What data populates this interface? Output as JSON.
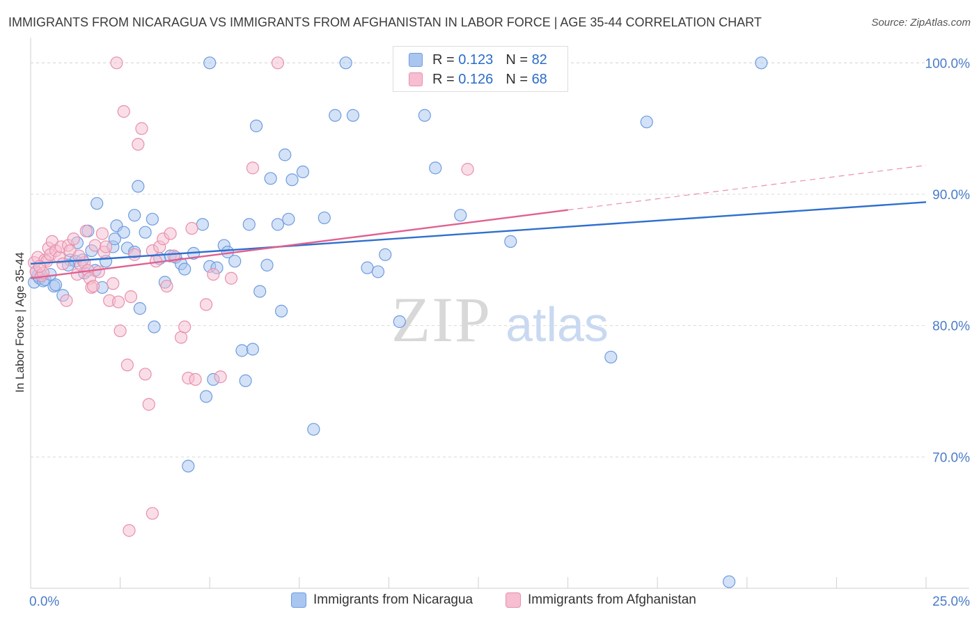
{
  "title": "IMMIGRANTS FROM NICARAGUA VS IMMIGRANTS FROM AFGHANISTAN IN LABOR FORCE | AGE 35-44 CORRELATION CHART",
  "source": "Source: ZipAtlas.com",
  "watermark": {
    "zip": "ZIP",
    "atlas": "atlas"
  },
  "legend_top": [
    {
      "r_label": "R =",
      "r_value": "0.123",
      "n_label": "N =",
      "n_value": "82"
    },
    {
      "r_label": "R =",
      "r_value": "0.126",
      "n_label": "N =",
      "n_value": "68"
    }
  ],
  "colors": {
    "blue_fill": "#a9c6f0",
    "blue_stroke": "#6d9be0",
    "blue_line": "#2f6fce",
    "pink_fill": "#f6bed0",
    "pink_stroke": "#e88fab",
    "pink_line": "#e06090",
    "tick_label": "#4a7cc7",
    "grid": "#d9d9d9"
  },
  "chart_data": {
    "type": "scatter",
    "title": "IMMIGRANTS FROM NICARAGUA VS IMMIGRANTS FROM AFGHANISTAN IN LABOR FORCE | AGE 35-44 CORRELATION CHART",
    "xlabel": "",
    "ylabel": "In Labor Force | Age 35-44",
    "xlim": [
      0,
      25
    ],
    "ylim": [
      60,
      101.5
    ],
    "x_tick_labels": [
      "0.0%",
      "25.0%"
    ],
    "y_ticks": [
      70,
      80,
      90,
      100
    ],
    "y_tick_labels": [
      "70.0%",
      "80.0%",
      "90.0%",
      "100.0%"
    ],
    "grid": true,
    "legend_position": "top-center",
    "series": [
      {
        "name": "Immigrants from Nicaragua",
        "r": 0.123,
        "n": 82,
        "trend": {
          "x0": 0,
          "y0": 84.7,
          "x1": 25,
          "y1": 89.4
        },
        "points": [
          [
            0.1,
            83.3
          ],
          [
            0.2,
            83.8
          ],
          [
            0.25,
            83.6
          ],
          [
            0.35,
            83.4
          ],
          [
            0.4,
            83.5
          ],
          [
            0.55,
            83.9
          ],
          [
            0.65,
            83.0
          ],
          [
            0.7,
            83.1
          ],
          [
            0.9,
            82.3
          ],
          [
            1.1,
            85.0
          ],
          [
            1.25,
            84.9
          ],
          [
            1.3,
            86.3
          ],
          [
            1.5,
            84.0
          ],
          [
            1.6,
            87.2
          ],
          [
            1.7,
            85.7
          ],
          [
            1.8,
            84.2
          ],
          [
            1.85,
            89.3
          ],
          [
            2.0,
            82.9
          ],
          [
            2.1,
            84.9
          ],
          [
            2.3,
            86.0
          ],
          [
            2.4,
            87.6
          ],
          [
            2.6,
            87.1
          ],
          [
            2.7,
            85.9
          ],
          [
            2.9,
            85.6
          ],
          [
            2.9,
            88.4
          ],
          [
            3.0,
            90.6
          ],
          [
            3.05,
            81.3
          ],
          [
            3.2,
            87.1
          ],
          [
            3.4,
            88.1
          ],
          [
            3.45,
            79.9
          ],
          [
            3.6,
            85.1
          ],
          [
            3.75,
            83.3
          ],
          [
            3.9,
            85.3
          ],
          [
            4.05,
            85.2
          ],
          [
            4.2,
            84.7
          ],
          [
            4.3,
            84.3
          ],
          [
            4.4,
            69.3
          ],
          [
            4.55,
            85.5
          ],
          [
            4.8,
            87.7
          ],
          [
            4.9,
            74.6
          ],
          [
            5.0,
            84.5
          ],
          [
            5.1,
            75.9
          ],
          [
            5.2,
            84.4
          ],
          [
            5.4,
            86.1
          ],
          [
            5.5,
            85.6
          ],
          [
            5.7,
            84.9
          ],
          [
            5.9,
            78.1
          ],
          [
            6.0,
            75.8
          ],
          [
            6.1,
            87.7
          ],
          [
            6.2,
            78.2
          ],
          [
            6.3,
            95.2
          ],
          [
            6.4,
            82.6
          ],
          [
            6.6,
            84.6
          ],
          [
            6.7,
            91.2
          ],
          [
            6.9,
            87.7
          ],
          [
            7.0,
            81.1
          ],
          [
            7.1,
            93.0
          ],
          [
            7.2,
            88.1
          ],
          [
            7.3,
            91.1
          ],
          [
            7.6,
            91.7
          ],
          [
            7.9,
            72.1
          ],
          [
            8.2,
            88.2
          ],
          [
            8.5,
            96.0
          ],
          [
            9.0,
            96.0
          ],
          [
            9.4,
            84.4
          ],
          [
            9.7,
            84.1
          ],
          [
            9.9,
            85.4
          ],
          [
            10.3,
            80.3
          ],
          [
            11.0,
            96.0
          ],
          [
            11.3,
            92.0
          ],
          [
            12.0,
            88.4
          ],
          [
            5.0,
            100.0
          ],
          [
            8.8,
            100.0
          ],
          [
            13.4,
            86.4
          ],
          [
            16.2,
            77.6
          ],
          [
            17.2,
            95.5
          ],
          [
            20.4,
            100.0
          ],
          [
            19.5,
            60.5
          ],
          [
            2.35,
            86.6
          ],
          [
            1.05,
            84.6
          ],
          [
            0.15,
            84.1
          ],
          [
            1.45,
            85.0
          ]
        ]
      },
      {
        "name": "Immigrants from Afghanistan",
        "r": 0.126,
        "n": 68,
        "trend": {
          "x0": 0,
          "y0": 83.6,
          "x1": 15,
          "y1": 88.8
        },
        "trend_dashed": {
          "x0": 15,
          "y0": 88.8,
          "x1": 25,
          "y1": 92.2
        },
        "points": [
          [
            0.1,
            84.8
          ],
          [
            0.15,
            84.1
          ],
          [
            0.2,
            85.2
          ],
          [
            0.3,
            83.8
          ],
          [
            0.35,
            84.0
          ],
          [
            0.4,
            85.0
          ],
          [
            0.45,
            84.9
          ],
          [
            0.5,
            85.9
          ],
          [
            0.55,
            85.4
          ],
          [
            0.6,
            86.4
          ],
          [
            0.7,
            85.7
          ],
          [
            0.8,
            85.2
          ],
          [
            0.85,
            86.0
          ],
          [
            0.9,
            84.7
          ],
          [
            1.0,
            81.9
          ],
          [
            1.05,
            86.1
          ],
          [
            1.1,
            85.7
          ],
          [
            1.2,
            86.6
          ],
          [
            1.3,
            83.9
          ],
          [
            1.4,
            84.6
          ],
          [
            1.5,
            84.8
          ],
          [
            1.55,
            87.2
          ],
          [
            1.6,
            84.2
          ],
          [
            1.65,
            83.6
          ],
          [
            1.7,
            82.9
          ],
          [
            1.75,
            83.0
          ],
          [
            1.8,
            86.1
          ],
          [
            1.9,
            84.1
          ],
          [
            2.0,
            87.0
          ],
          [
            2.05,
            85.6
          ],
          [
            2.1,
            86.0
          ],
          [
            2.2,
            81.9
          ],
          [
            2.3,
            83.2
          ],
          [
            2.45,
            81.8
          ],
          [
            2.5,
            79.6
          ],
          [
            2.6,
            96.3
          ],
          [
            2.7,
            77.0
          ],
          [
            2.8,
            82.2
          ],
          [
            2.9,
            85.4
          ],
          [
            3.0,
            93.8
          ],
          [
            3.1,
            95.0
          ],
          [
            3.2,
            76.3
          ],
          [
            3.3,
            74.0
          ],
          [
            3.4,
            85.7
          ],
          [
            3.5,
            84.9
          ],
          [
            3.6,
            86.0
          ],
          [
            3.7,
            86.6
          ],
          [
            3.8,
            83.0
          ],
          [
            3.9,
            87.0
          ],
          [
            4.0,
            85.3
          ],
          [
            4.2,
            79.1
          ],
          [
            4.3,
            79.9
          ],
          [
            4.4,
            76.0
          ],
          [
            4.5,
            87.4
          ],
          [
            4.6,
            75.9
          ],
          [
            4.9,
            81.6
          ],
          [
            5.1,
            83.9
          ],
          [
            5.3,
            76.1
          ],
          [
            5.6,
            83.6
          ],
          [
            6.2,
            92.0
          ],
          [
            2.4,
            100.0
          ],
          [
            6.9,
            100.0
          ],
          [
            10.6,
            100.0
          ],
          [
            3.4,
            65.7
          ],
          [
            2.75,
            64.4
          ],
          [
            12.2,
            91.9
          ],
          [
            0.25,
            84.5
          ],
          [
            1.35,
            85.3
          ]
        ]
      }
    ]
  },
  "bottom_legend": [
    "Immigrants from Nicaragua",
    "Immigrants from Afghanistan"
  ]
}
